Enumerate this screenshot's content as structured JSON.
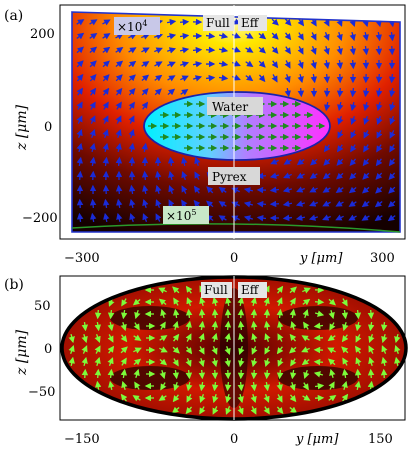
{
  "panel_a": {
    "label": "(a)",
    "left_tag": "Full",
    "right_tag": "Eff",
    "scale_top": "×10",
    "scale_top_exp": "4",
    "scale_bottom": "×10",
    "scale_bottom_exp": "5",
    "region_water": "Water",
    "region_pyrex": "Pyrex",
    "ylabel": "z [μm]",
    "xlabel": "y [μm]",
    "yticks": [
      "200",
      "0",
      "−200"
    ],
    "xticks": [
      "−300",
      "0",
      "300"
    ]
  },
  "panel_b": {
    "label": "(b)",
    "left_tag": "Full",
    "right_tag": "Eff",
    "ylabel": "z [μm]",
    "xlabel": "y [μm]",
    "yticks": [
      "50",
      "0",
      "−50"
    ],
    "xticks": [
      "−150",
      "0",
      "150"
    ]
  },
  "colors": {
    "pyrex_arrows": "#1a2bd8",
    "water_arrows": "#1f8a1f",
    "panel_b_arrows": "#7CFC3A",
    "outline": "#2233cc",
    "bottom_contour": "#2a9a2a"
  }
}
